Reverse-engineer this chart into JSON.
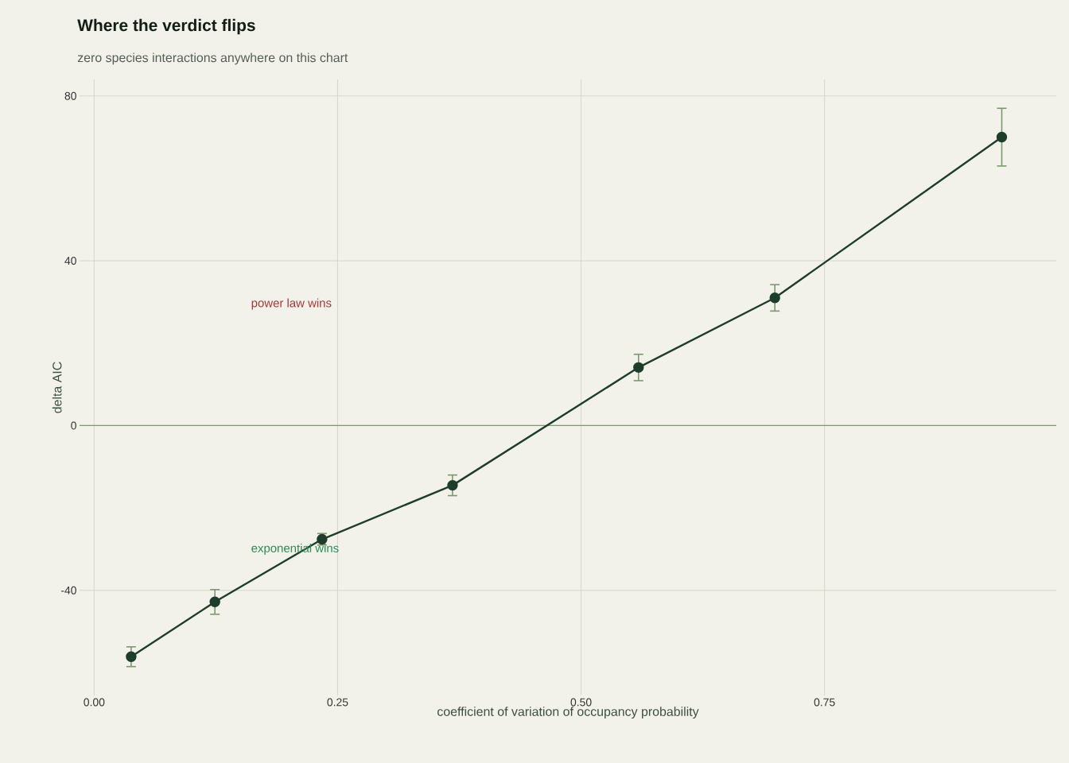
{
  "chart_data": {
    "type": "line",
    "title": "Where the verdict flips",
    "subtitle": "zero species interactions anywhere on this chart",
    "xlabel": "coefficient of variation of occupancy probability",
    "ylabel": "delta AIC",
    "x": [
      0.038,
      0.124,
      0.234,
      0.368,
      0.559,
      0.699,
      0.932
    ],
    "series": [
      {
        "color": "#1f3d2b",
        "values": [
          -56.1,
          -42.8,
          -27.6,
          -14.5,
          14.1,
          31.0,
          70.0
        ],
        "errors": [
          2.4,
          3,
          1.4,
          2.5,
          3.2,
          3.2,
          7
        ]
      }
    ],
    "xlim": [
      -0.015,
      0.988
    ],
    "ylim": [
      -65.5,
      84
    ],
    "xticks": [
      {
        "value": 0,
        "label": "0.00"
      },
      {
        "value": 0.25,
        "label": "0.25"
      },
      {
        "value": 0.5,
        "label": "0.50"
      },
      {
        "value": 0.75,
        "label": "0.75"
      }
    ],
    "yticks": [
      -40,
      0,
      40,
      80
    ],
    "ref_lines": [
      {
        "axis": "y",
        "value": 0,
        "color": "#7a9a6e"
      }
    ],
    "annotations": [
      "power law wins",
      "exponential wins"
    ],
    "grid": true,
    "marker": "circle",
    "line_style": "solid"
  }
}
